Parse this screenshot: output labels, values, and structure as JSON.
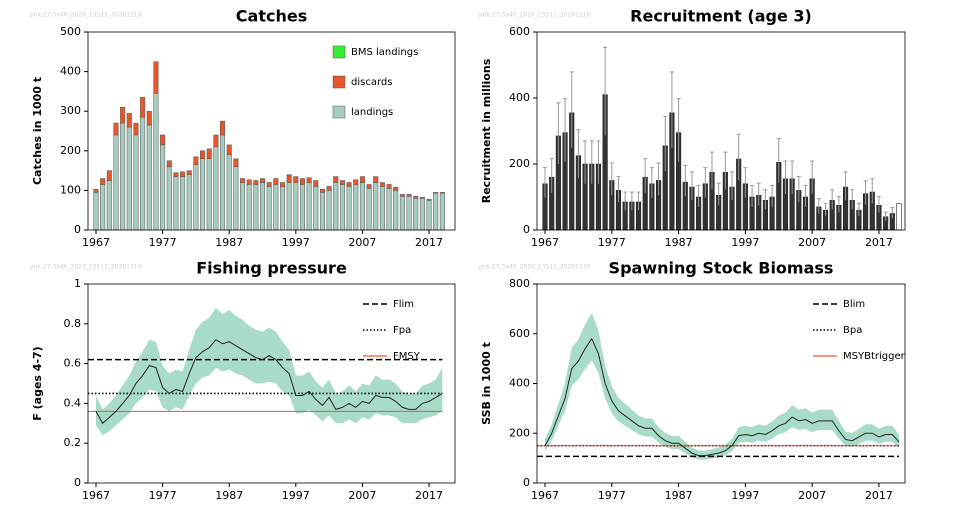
{
  "chart_data": [
    {
      "type": "bar",
      "title": "Catches",
      "y_label": "Catches in 1000 t",
      "watermark": "pok.27.3a46_2020_13511_20201110",
      "xlim": [
        1965.8,
        2020.9
      ],
      "xticks": [
        1967,
        1977,
        1987,
        1997,
        2007,
        2017
      ],
      "ylim": [
        0,
        500
      ],
      "yticks": [
        0,
        100,
        200,
        300,
        400,
        500
      ],
      "stacked": true,
      "x": [
        1967,
        1968,
        1969,
        1970,
        1971,
        1972,
        1973,
        1974,
        1975,
        1976,
        1977,
        1978,
        1979,
        1980,
        1981,
        1982,
        1983,
        1984,
        1985,
        1986,
        1987,
        1988,
        1989,
        1990,
        1991,
        1992,
        1993,
        1994,
        1995,
        1996,
        1997,
        1998,
        1999,
        2000,
        2001,
        2002,
        2003,
        2004,
        2005,
        2006,
        2007,
        2008,
        2009,
        2010,
        2011,
        2012,
        2013,
        2014,
        2015,
        2016,
        2017,
        2018,
        2019
      ],
      "series": [
        {
          "name": "landings",
          "color": "#a8cbbf",
          "values": [
            95,
            115,
            125,
            240,
            270,
            260,
            240,
            285,
            265,
            345,
            215,
            160,
            135,
            135,
            140,
            165,
            180,
            180,
            210,
            240,
            190,
            160,
            120,
            115,
            115,
            120,
            110,
            115,
            110,
            120,
            120,
            115,
            120,
            110,
            95,
            100,
            120,
            115,
            110,
            115,
            120,
            105,
            120,
            110,
            105,
            100,
            85,
            85,
            80,
            80,
            75,
            93,
            93
          ]
        },
        {
          "name": "discards",
          "color": "#e8572a",
          "values": [
            8,
            15,
            25,
            30,
            40,
            35,
            30,
            50,
            35,
            80,
            25,
            15,
            10,
            12,
            10,
            20,
            20,
            25,
            30,
            35,
            25,
            20,
            10,
            12,
            10,
            10,
            10,
            15,
            10,
            20,
            15,
            15,
            12,
            15,
            8,
            10,
            15,
            10,
            10,
            12,
            15,
            10,
            15,
            10,
            10,
            8,
            5,
            5,
            5,
            3,
            3,
            2,
            2
          ]
        },
        {
          "name": "BMS landings",
          "color": "#33ee33",
          "values": [
            0,
            0,
            0,
            0,
            0,
            0,
            0,
            0,
            0,
            0,
            0,
            0,
            0,
            0,
            0,
            0,
            0,
            0,
            0,
            0,
            0,
            0,
            0,
            0,
            0,
            0,
            0,
            0,
            0,
            0,
            0,
            0,
            0,
            0,
            0,
            0,
            0,
            0,
            0,
            0,
            0,
            0,
            0,
            0,
            0,
            0,
            0,
            0,
            0,
            0,
            0,
            0,
            0
          ]
        }
      ]
    },
    {
      "type": "bar",
      "title": "Recruitment (age 3)",
      "y_label": "Recruitment in millions",
      "watermark": "pok.27.3a46_2020_13511_20201110",
      "xlim": [
        1965.8,
        2020.9
      ],
      "xticks": [
        1967,
        1977,
        1987,
        1997,
        2007,
        2017
      ],
      "ylim": [
        0,
        600
      ],
      "yticks": [
        0,
        200,
        400,
        600
      ],
      "color": "#333333",
      "error_color": "#999999",
      "last_bar_color": "#ffffff",
      "x": [
        1967,
        1968,
        1969,
        1970,
        1971,
        1972,
        1973,
        1974,
        1975,
        1976,
        1977,
        1978,
        1979,
        1980,
        1981,
        1982,
        1983,
        1984,
        1985,
        1986,
        1987,
        1988,
        1989,
        1990,
        1991,
        1992,
        1993,
        1994,
        1995,
        1996,
        1997,
        1998,
        1999,
        2000,
        2001,
        2002,
        2003,
        2004,
        2005,
        2006,
        2007,
        2008,
        2009,
        2010,
        2011,
        2012,
        2013,
        2014,
        2015,
        2016,
        2017,
        2018,
        2019,
        2020
      ],
      "values": [
        140,
        160,
        285,
        295,
        355,
        225,
        200,
        200,
        200,
        410,
        150,
        120,
        85,
        85,
        85,
        160,
        140,
        150,
        255,
        355,
        295,
        145,
        130,
        100,
        140,
        175,
        105,
        175,
        130,
        215,
        140,
        100,
        105,
        90,
        100,
        205,
        155,
        155,
        120,
        100,
        155,
        70,
        60,
        90,
        75,
        130,
        90,
        60,
        110,
        115,
        75,
        40,
        50,
        80
      ],
      "high": [
        189,
        216,
        385,
        398,
        479,
        304,
        270,
        270,
        270,
        554,
        203,
        162,
        115,
        115,
        115,
        216,
        189,
        203,
        344,
        479,
        398,
        196,
        176,
        135,
        189,
        236,
        142,
        236,
        176,
        290,
        189,
        135,
        142,
        122,
        135,
        277,
        209,
        209,
        162,
        135,
        209,
        95,
        81,
        122,
        101,
        176,
        122,
        81,
        149,
        155,
        101,
        54,
        68,
        null
      ],
      "low": [
        98,
        112,
        200,
        207,
        249,
        158,
        140,
        140,
        140,
        287,
        105,
        84,
        60,
        60,
        60,
        112,
        98,
        105,
        179,
        249,
        207,
        102,
        91,
        70,
        98,
        123,
        74,
        123,
        91,
        151,
        98,
        70,
        74,
        63,
        70,
        144,
        109,
        109,
        84,
        70,
        109,
        49,
        42,
        63,
        53,
        91,
        63,
        42,
        77,
        81,
        53,
        28,
        35,
        null
      ]
    },
    {
      "type": "line",
      "title": "Fishing pressure",
      "y_label": "F (ages 4-7)",
      "watermark": "pok.27.3a46_2020_13511_20201110",
      "xlim": [
        1965.8,
        2020.9
      ],
      "xticks": [
        1967,
        1977,
        1987,
        1997,
        2007,
        2017
      ],
      "ylim": [
        0,
        1
      ],
      "yticks": [
        0,
        0.2,
        0.4,
        0.6,
        0.8,
        1
      ],
      "color": "#222222",
      "band_color": "#a8dcc8",
      "x": [
        1967,
        1968,
        1969,
        1970,
        1971,
        1972,
        1973,
        1974,
        1975,
        1976,
        1977,
        1978,
        1979,
        1980,
        1981,
        1982,
        1983,
        1984,
        1985,
        1986,
        1987,
        1988,
        1989,
        1990,
        1991,
        1992,
        1993,
        1994,
        1995,
        1996,
        1997,
        1998,
        1999,
        2000,
        2001,
        2002,
        2003,
        2004,
        2005,
        2006,
        2007,
        2008,
        2009,
        2010,
        2011,
        2012,
        2013,
        2014,
        2015,
        2016,
        2017,
        2018,
        2019
      ],
      "values": [
        0.36,
        0.3,
        0.33,
        0.36,
        0.4,
        0.44,
        0.5,
        0.54,
        0.59,
        0.58,
        0.48,
        0.45,
        0.47,
        0.46,
        0.55,
        0.63,
        0.66,
        0.68,
        0.72,
        0.7,
        0.71,
        0.69,
        0.67,
        0.65,
        0.63,
        0.62,
        0.64,
        0.62,
        0.58,
        0.55,
        0.44,
        0.44,
        0.46,
        0.42,
        0.39,
        0.43,
        0.37,
        0.38,
        0.4,
        0.38,
        0.41,
        0.4,
        0.44,
        0.43,
        0.43,
        0.41,
        0.38,
        0.37,
        0.37,
        0.4,
        0.41,
        0.43,
        0.45
      ],
      "low": [
        0.29,
        0.24,
        0.26,
        0.29,
        0.32,
        0.35,
        0.4,
        0.43,
        0.47,
        0.46,
        0.38,
        0.36,
        0.38,
        0.37,
        0.44,
        0.5,
        0.53,
        0.54,
        0.58,
        0.56,
        0.57,
        0.55,
        0.54,
        0.52,
        0.5,
        0.5,
        0.51,
        0.5,
        0.46,
        0.44,
        0.35,
        0.35,
        0.37,
        0.34,
        0.31,
        0.34,
        0.3,
        0.3,
        0.32,
        0.3,
        0.33,
        0.32,
        0.35,
        0.34,
        0.34,
        0.33,
        0.3,
        0.3,
        0.3,
        0.32,
        0.33,
        0.34,
        0.36
      ],
      "high": [
        0.44,
        0.37,
        0.4,
        0.44,
        0.49,
        0.54,
        0.61,
        0.66,
        0.72,
        0.71,
        0.59,
        0.55,
        0.57,
        0.56,
        0.67,
        0.77,
        0.81,
        0.83,
        0.88,
        0.85,
        0.87,
        0.84,
        0.82,
        0.79,
        0.77,
        0.76,
        0.78,
        0.76,
        0.71,
        0.67,
        0.54,
        0.54,
        0.56,
        0.51,
        0.48,
        0.52,
        0.45,
        0.46,
        0.49,
        0.46,
        0.5,
        0.49,
        0.54,
        0.52,
        0.52,
        0.5,
        0.46,
        0.45,
        0.45,
        0.49,
        0.5,
        0.52,
        0.58
      ],
      "reference_lines": [
        {
          "name": "Flim",
          "value": 0.62,
          "color": "#000000",
          "style": "dashed"
        },
        {
          "name": "Fpa",
          "value": 0.45,
          "color": "#000000",
          "style": "dotted"
        },
        {
          "name": "FMSY",
          "value": 0.36,
          "color": "#e8572a",
          "style": "solid"
        }
      ]
    },
    {
      "type": "line",
      "title": "Spawning Stock Biomass",
      "y_label": "SSB in 1000 t",
      "watermark": "pok.27.3a46_2020_13511_20201110",
      "xlim": [
        1965.8,
        2020.9
      ],
      "xticks": [
        1967,
        1977,
        1987,
        1997,
        2007,
        2017
      ],
      "ylim": [
        0,
        800
      ],
      "yticks": [
        0,
        200,
        400,
        600,
        800
      ],
      "color": "#222222",
      "band_color": "#a8dcc8",
      "x": [
        1967,
        1968,
        1969,
        1970,
        1971,
        1972,
        1973,
        1974,
        1975,
        1976,
        1977,
        1978,
        1979,
        1980,
        1981,
        1982,
        1983,
        1984,
        1985,
        1986,
        1987,
        1988,
        1989,
        1990,
        1991,
        1992,
        1993,
        1994,
        1995,
        1996,
        1997,
        1998,
        1999,
        2000,
        2001,
        2002,
        2003,
        2004,
        2005,
        2006,
        2007,
        2008,
        2009,
        2010,
        2011,
        2012,
        2013,
        2014,
        2015,
        2016,
        2017,
        2018,
        2019,
        2020
      ],
      "values": [
        150,
        200,
        270,
        340,
        460,
        490,
        540,
        580,
        520,
        400,
        330,
        290,
        270,
        250,
        230,
        220,
        220,
        190,
        170,
        160,
        160,
        140,
        120,
        110,
        110,
        115,
        120,
        130,
        150,
        190,
        195,
        190,
        200,
        195,
        210,
        230,
        240,
        265,
        250,
        255,
        240,
        250,
        250,
        250,
        210,
        175,
        170,
        185,
        200,
        200,
        185,
        195,
        195,
        165
      ],
      "low": [
        128,
        170,
        230,
        289,
        391,
        417,
        459,
        493,
        442,
        340,
        281,
        247,
        230,
        213,
        196,
        187,
        187,
        162,
        145,
        136,
        136,
        119,
        102,
        94,
        94,
        98,
        102,
        111,
        128,
        162,
        166,
        162,
        170,
        166,
        179,
        196,
        204,
        225,
        213,
        217,
        204,
        213,
        213,
        213,
        179,
        149,
        145,
        157,
        170,
        170,
        157,
        166,
        166,
        140
      ],
      "high": [
        177,
        236,
        319,
        401,
        543,
        578,
        637,
        684,
        614,
        472,
        389,
        342,
        319,
        295,
        271,
        260,
        260,
        224,
        201,
        189,
        189,
        165,
        142,
        130,
        130,
        136,
        142,
        153,
        177,
        224,
        230,
        224,
        236,
        230,
        248,
        271,
        283,
        313,
        295,
        301,
        283,
        295,
        295,
        295,
        248,
        207,
        201,
        218,
        236,
        236,
        218,
        230,
        230,
        195
      ],
      "reference_lines": [
        {
          "name": "Blim",
          "value": 107,
          "color": "#000000",
          "style": "dashed"
        },
        {
          "name": "Bpa",
          "value": 150,
          "color": "#000000",
          "style": "dotted"
        },
        {
          "name": "MSYBtrigger",
          "value": 150,
          "color": "#e8572a",
          "style": "solid"
        }
      ]
    }
  ]
}
